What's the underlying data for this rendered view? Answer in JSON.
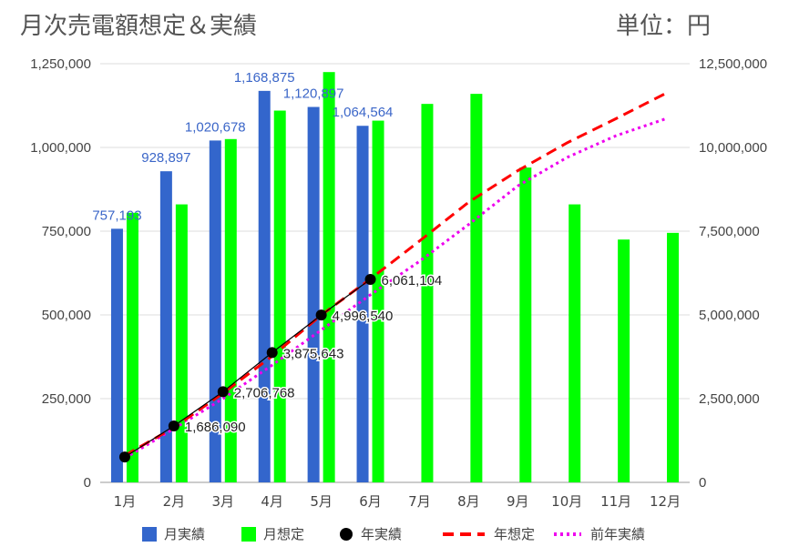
{
  "title": "月次売電額想定＆実績",
  "unit": "単位：円",
  "colors": {
    "monthly_actual": "#3366cc",
    "monthly_forecast": "#00ff00",
    "annual_actual": "#000000",
    "annual_forecast": "#ff0000",
    "prev_year": "#ee00ee"
  },
  "chart_data": {
    "type": "bar",
    "categories": [
      "1月",
      "2月",
      "3月",
      "4月",
      "5月",
      "6月",
      "7月",
      "8月",
      "9月",
      "10月",
      "11月",
      "12月"
    ],
    "y_left": {
      "range": [
        0,
        1250000
      ],
      "ticks": [
        "0",
        "250,000",
        "500,000",
        "750,000",
        "1,000,000",
        "1,250,000"
      ]
    },
    "y_right": {
      "range": [
        0,
        12500000
      ],
      "ticks": [
        "0",
        "2,500,000",
        "5,000,000",
        "7,500,000",
        "10,000,000",
        "12,500,000"
      ]
    },
    "grid": true,
    "legend_position": "bottom",
    "series": [
      {
        "name": "月実績",
        "type": "bar",
        "axis": "left",
        "values": [
          757193,
          928897,
          1020678,
          1168875,
          1120897,
          1064564,
          null,
          null,
          null,
          null,
          null,
          null
        ],
        "labels": [
          "757,193",
          "928,897",
          "1,020,678",
          "1,168,875",
          "1,120,897",
          "1,064,564"
        ]
      },
      {
        "name": "月想定",
        "type": "bar",
        "axis": "left",
        "values": [
          805000,
          830000,
          1025000,
          1110000,
          1225000,
          1080000,
          1130000,
          1160000,
          940000,
          830000,
          725000,
          745000
        ]
      },
      {
        "name": "年実績",
        "type": "scatter",
        "axis": "right",
        "values": [
          757193,
          1686090,
          2706768,
          3875643,
          4996540,
          6061104,
          null,
          null,
          null,
          null,
          null,
          null
        ],
        "labels": [
          "",
          "1,686,090",
          "2,706,768",
          "3,875,643",
          "4,996,540",
          "6,061,104"
        ]
      },
      {
        "name": "年想定",
        "type": "line",
        "axis": "right",
        "values": [
          805000,
          1635000,
          2660000,
          3770000,
          4995000,
          6075000,
          7205000,
          8365000,
          9305000,
          10135000,
          10860000,
          11605000
        ]
      },
      {
        "name": "前年実績",
        "type": "line",
        "axis": "right",
        "values": [
          720000,
          1600000,
          2500000,
          3500000,
          4550000,
          5600000,
          6600000,
          7700000,
          8850000,
          9700000,
          10350000,
          10850000
        ]
      }
    ]
  }
}
